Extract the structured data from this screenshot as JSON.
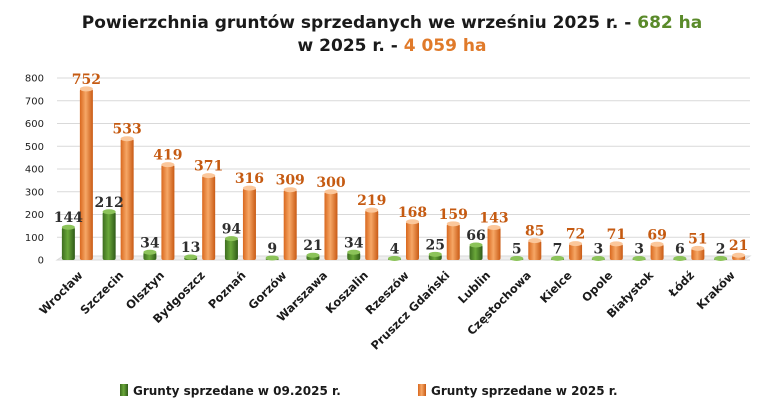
{
  "title": {
    "line1_prefix": "Powierzchnia gruntów sprzedanych we wrześniu 2025 r. - ",
    "line1_value": "682 ha",
    "line2_prefix": "w 2025 r. - ",
    "line2_value": "4 059 ha"
  },
  "colors": {
    "green": "#4f8a2a",
    "orange": "#ee8a3c"
  },
  "chart_data": {
    "type": "bar",
    "categories": [
      "Wrocław",
      "Szczecin",
      "Olsztyn",
      "Bydgoszcz",
      "Poznań",
      "Gorzów",
      "Warszawa",
      "Koszalin",
      "Rzeszów",
      "Pruszcz Gdański",
      "Lublin",
      "Częstochowa",
      "Kielce",
      "Opole",
      "Białystok",
      "Łódź",
      "Kraków"
    ],
    "series": [
      {
        "name": "Grunty sprzedane w 09.2025 r.",
        "values": [
          144,
          212,
          34,
          13,
          94,
          9,
          21,
          34,
          4,
          25,
          66,
          5,
          7,
          3,
          3,
          6,
          2
        ]
      },
      {
        "name": "Grunty sprzedane w 2025 r.",
        "values": [
          752,
          533,
          419,
          371,
          316,
          309,
          300,
          219,
          168,
          159,
          143,
          85,
          72,
          71,
          69,
          51,
          21
        ]
      }
    ],
    "yticks": [
      "0",
      "100",
      "200",
      "300",
      "400",
      "500",
      "600",
      "700",
      "800"
    ],
    "ylim": [
      0,
      800
    ],
    "grid": true,
    "legend": "bottom"
  }
}
